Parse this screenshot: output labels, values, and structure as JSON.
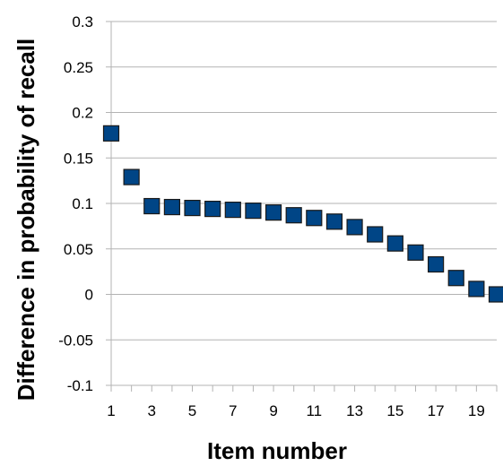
{
  "chart_data": {
    "type": "scatter",
    "title": "",
    "xlabel": "Item number",
    "ylabel": "Difference in probability of recall",
    "xlim": [
      1,
      20
    ],
    "ylim": [
      -0.1,
      0.3
    ],
    "x_ticks": [
      1,
      3,
      5,
      7,
      9,
      11,
      13,
      15,
      17,
      19
    ],
    "y_ticks": [
      -0.1,
      -0.05,
      0,
      0.05,
      0.1,
      0.15,
      0.2,
      0.25,
      0.3
    ],
    "x_tick_labels": [
      "1",
      "3",
      "5",
      "7",
      "9",
      "11",
      "13",
      "15",
      "17",
      "19"
    ],
    "y_tick_labels": [
      "-0.1",
      "-0.05",
      "0",
      "0.05",
      "0.1",
      "0.15",
      "0.2",
      "0.25",
      "0.3"
    ],
    "grid": true,
    "marker": "square",
    "color": "#004586",
    "series": [
      {
        "x": [
          1,
          2,
          3,
          4,
          5,
          6,
          7,
          8,
          9,
          10,
          11,
          12,
          13,
          14,
          15,
          16,
          17,
          18,
          19,
          20
        ],
        "y": [
          0.177,
          0.129,
          0.097,
          0.096,
          0.095,
          0.094,
          0.093,
          0.092,
          0.09,
          0.087,
          0.084,
          0.08,
          0.074,
          0.066,
          0.056,
          0.046,
          0.033,
          0.018,
          0.006,
          0.0
        ]
      }
    ]
  }
}
